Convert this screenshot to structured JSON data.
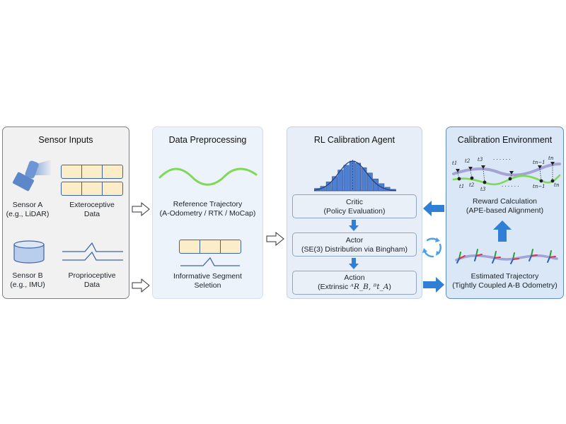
{
  "panels": {
    "sensor_inputs": {
      "title": "Sensor Inputs",
      "sensor_a": [
        "Sensor A",
        "(e.g., LiDAR)"
      ],
      "exteroceptive": [
        "Exteroceptive",
        "Data"
      ],
      "sensor_b": [
        "Sensor B",
        "(e.g., IMU)"
      ],
      "proprioceptive": [
        "Proprioceptive",
        "Data"
      ]
    },
    "data_preprocessing": {
      "title": "Data Preprocessing",
      "reference": [
        "Reference Trajectory",
        "(A-Odometry / RTK / MoCap)"
      ],
      "segment": [
        "Informative Segment",
        "Seletion"
      ]
    },
    "rl_agent": {
      "title": "RL Calibration Agent",
      "critic": [
        "Critic",
        "(Policy Evaluation)"
      ],
      "actor": [
        "Actor",
        "(SE(3) Distribution via Bingham)"
      ],
      "action_title": "Action",
      "action_prefix": "(Extrinsic ",
      "action_math": "ᴬR_B, ᴮt_A",
      "action_suffix": ")"
    },
    "calibration_env": {
      "title": "Calibration Environment",
      "reward": [
        "Reward Calculation",
        "(APE-based Alignment)"
      ],
      "estimated": [
        "Estimated Trajectory",
        "(Tightly Coupled A-B Odometry)"
      ],
      "time_labels_top": [
        "t1",
        "t2",
        "t3",
        "· · · · · ·",
        "tn−1",
        "tn"
      ],
      "time_labels_bottom": [
        "t1",
        "t2",
        "t3",
        "· · · · · ·",
        "tn−1",
        "tn"
      ]
    }
  },
  "histogram": [
    0.08,
    0.15,
    0.3,
    0.48,
    0.7,
    0.86,
    1.0,
    0.93,
    0.78,
    0.6,
    0.4,
    0.24,
    0.12,
    0.05
  ],
  "colors": {
    "accent_blue": "#2f7fd6",
    "dark_blue": "#3f63a8",
    "green_curve": "#7ed957",
    "purple_curve": "#a3a3d6",
    "cell_fill": "#fbedc7",
    "sensor_blue": "#6d96d4"
  }
}
